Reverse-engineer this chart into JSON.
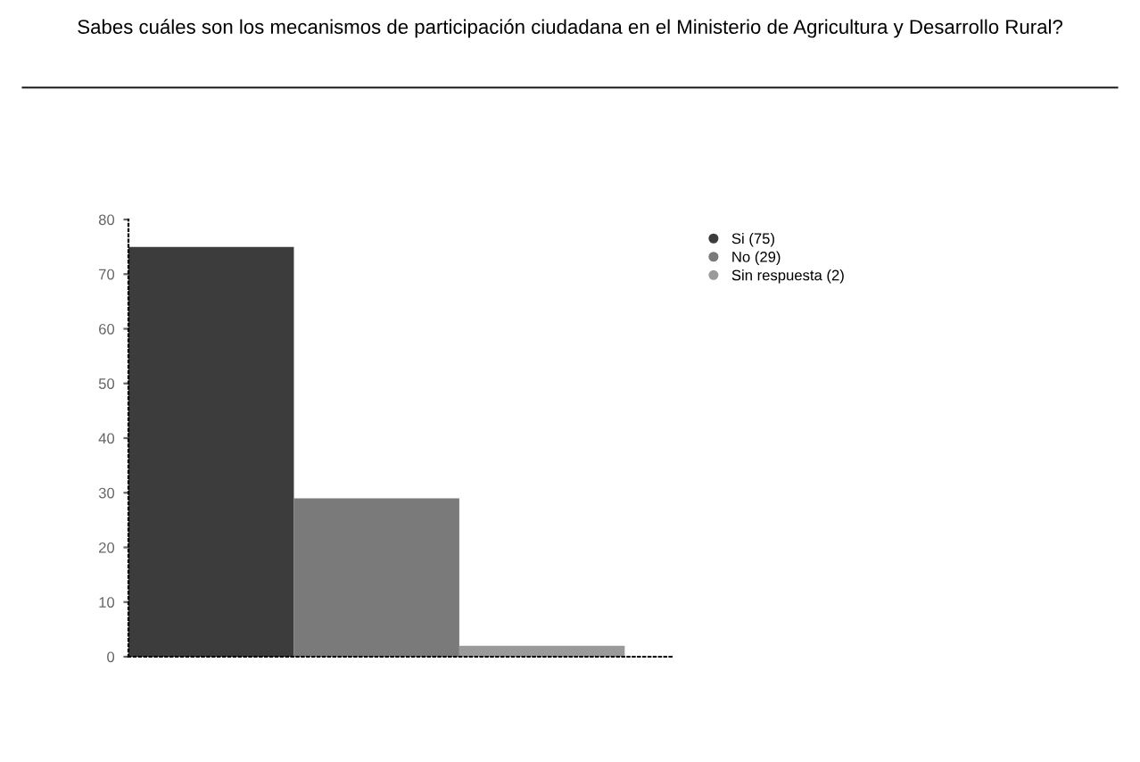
{
  "chart_data": {
    "type": "bar",
    "title": "Sabes cuáles son los mecanismos de participación ciudadana en el Ministerio de Agricultura y Desarrollo Rural?",
    "categories": [
      null,
      null,
      null
    ],
    "series": [
      {
        "name": "Si (75)",
        "color": "#3c3c3c",
        "values": [
          75,
          null,
          null
        ]
      },
      {
        "name": "No (29)",
        "color": "#7a7a7a",
        "values": [
          null,
          29,
          null
        ]
      },
      {
        "name": "Sin respuesta (2)",
        "color": "#9a9a9a",
        "values": [
          null,
          null,
          2
        ]
      }
    ],
    "ylim": [
      0,
      80
    ],
    "yticks": [
      0,
      10,
      20,
      30,
      40,
      50,
      60,
      70,
      80
    ],
    "legend": "top right",
    "grid": false
  }
}
